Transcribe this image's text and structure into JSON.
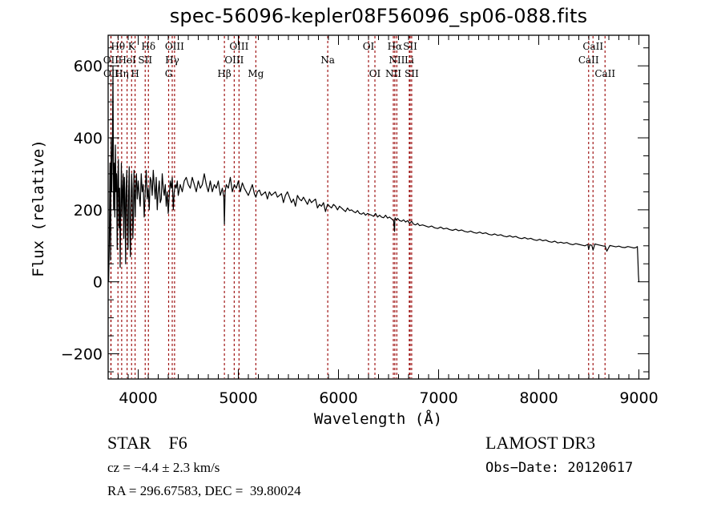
{
  "chart_data": {
    "type": "line",
    "title": "spec-56096-kepler08F56096_sp06-088.fits",
    "xlabel": "Wavelength (Å)",
    "ylabel": "Flux (relative)",
    "xlim": [
      3700,
      9100
    ],
    "ylim": [
      -270,
      685
    ],
    "xticks": [
      4000,
      5000,
      6000,
      7000,
      8000,
      9000
    ],
    "xtick_labels": [
      "4000",
      "5000",
      "6000",
      "7000",
      "8000",
      "9000"
    ],
    "yticks": [
      -200,
      0,
      200,
      400,
      600
    ],
    "ytick_labels": [
      "−200",
      "0",
      "200",
      "400",
      "600"
    ],
    "x_minor_step": 100,
    "y_minor_step": 50,
    "grid": false,
    "series": [
      {
        "name": "spectrum",
        "x": [
          3705,
          3712,
          3718,
          3724,
          3730,
          3736,
          3742,
          3748,
          3754,
          3760,
          3766,
          3772,
          3778,
          3784,
          3790,
          3796,
          3802,
          3808,
          3814,
          3820,
          3826,
          3832,
          3838,
          3844,
          3850,
          3856,
          3862,
          3868,
          3874,
          3880,
          3886,
          3892,
          3898,
          3904,
          3910,
          3916,
          3922,
          3928,
          3934,
          3940,
          3946,
          3952,
          3958,
          3964,
          3970,
          3976,
          3982,
          3990,
          4000,
          4010,
          4020,
          4030,
          4040,
          4050,
          4060,
          4070,
          4080,
          4090,
          4100,
          4110,
          4120,
          4130,
          4140,
          4150,
          4160,
          4170,
          4180,
          4190,
          4200,
          4210,
          4220,
          4230,
          4240,
          4250,
          4260,
          4270,
          4280,
          4290,
          4300,
          4310,
          4320,
          4330,
          4340,
          4350,
          4360,
          4370,
          4380,
          4390,
          4400,
          4420,
          4440,
          4460,
          4480,
          4500,
          4520,
          4540,
          4560,
          4580,
          4600,
          4620,
          4640,
          4660,
          4680,
          4700,
          4720,
          4740,
          4760,
          4780,
          4800,
          4820,
          4840,
          4855,
          4861,
          4868,
          4880,
          4900,
          4920,
          4940,
          4960,
          4980,
          5000,
          5020,
          5040,
          5060,
          5080,
          5100,
          5120,
          5140,
          5160,
          5175,
          5190,
          5210,
          5230,
          5250,
          5270,
          5290,
          5310,
          5330,
          5350,
          5370,
          5390,
          5410,
          5430,
          5450,
          5470,
          5490,
          5510,
          5530,
          5550,
          5570,
          5590,
          5610,
          5630,
          5650,
          5670,
          5690,
          5710,
          5730,
          5750,
          5770,
          5790,
          5810,
          5830,
          5850,
          5870,
          5890,
          5895,
          5910,
          5930,
          5950,
          5970,
          5990,
          6010,
          6030,
          6050,
          6070,
          6090,
          6110,
          6130,
          6150,
          6170,
          6190,
          6210,
          6230,
          6250,
          6270,
          6290,
          6310,
          6330,
          6350,
          6370,
          6390,
          6410,
          6430,
          6450,
          6470,
          6490,
          6510,
          6530,
          6550,
          6560,
          6563,
          6566,
          6575,
          6590,
          6610,
          6630,
          6650,
          6670,
          6690,
          6710,
          6730,
          6750,
          6770,
          6790,
          6810,
          6840,
          6870,
          6900,
          6930,
          6960,
          6990,
          7020,
          7050,
          7080,
          7110,
          7140,
          7170,
          7200,
          7230,
          7260,
          7290,
          7320,
          7350,
          7380,
          7410,
          7440,
          7470,
          7500,
          7530,
          7560,
          7590,
          7620,
          7650,
          7680,
          7710,
          7740,
          7770,
          7800,
          7830,
          7860,
          7890,
          7920,
          7950,
          7980,
          8010,
          8040,
          8070,
          8100,
          8130,
          8160,
          8190,
          8220,
          8250,
          8280,
          8310,
          8340,
          8370,
          8400,
          8430,
          8460,
          8490,
          8498,
          8510,
          8530,
          8542,
          8560,
          8590,
          8620,
          8650,
          8662,
          8680,
          8710,
          8740,
          8770,
          8800,
          8830,
          8860,
          8890,
          8920,
          8950,
          8970,
          8985,
          8990,
          8995,
          9000
        ],
        "y": [
          0,
          120,
          330,
          60,
          400,
          250,
          360,
          600,
          200,
          330,
          180,
          380,
          250,
          300,
          90,
          280,
          340,
          150,
          260,
          40,
          210,
          330,
          180,
          250,
          300,
          120,
          290,
          230,
          50,
          260,
          310,
          170,
          90,
          240,
          320,
          150,
          70,
          210,
          300,
          260,
          120,
          170,
          310,
          240,
          180,
          270,
          300,
          230,
          280,
          240,
          210,
          300,
          250,
          270,
          180,
          250,
          310,
          230,
          260,
          200,
          290,
          280,
          240,
          310,
          270,
          230,
          290,
          200,
          250,
          280,
          220,
          230,
          300,
          260,
          240,
          270,
          210,
          250,
          190,
          240,
          280,
          260,
          290,
          200,
          250,
          270,
          260,
          280,
          240,
          270,
          250,
          280,
          290,
          270,
          260,
          290,
          270,
          250,
          280,
          260,
          270,
          300,
          270,
          250,
          280,
          250,
          270,
          260,
          280,
          240,
          260,
          235,
          160,
          250,
          270,
          260,
          290,
          250,
          270,
          260,
          280,
          250,
          275,
          260,
          250,
          240,
          255,
          270,
          245,
          235,
          250,
          255,
          240,
          245,
          250,
          230,
          250,
          240,
          245,
          250,
          235,
          240,
          245,
          220,
          240,
          250,
          235,
          220,
          230,
          210,
          240,
          230,
          225,
          235,
          225,
          215,
          230,
          220,
          225,
          230,
          205,
          215,
          210,
          220,
          195,
          215,
          215,
          210,
          205,
          215,
          210,
          200,
          210,
          205,
          200,
          195,
          205,
          198,
          200,
          195,
          192,
          198,
          190,
          188,
          192,
          185,
          190,
          187,
          185,
          182,
          190,
          180,
          185,
          180,
          178,
          185,
          177,
          180,
          175,
          170,
          140,
          175,
          178,
          172,
          176,
          170,
          168,
          172,
          166,
          170,
          162,
          168,
          160,
          158,
          162,
          156,
          158,
          155,
          152,
          155,
          150,
          148,
          152,
          147,
          149,
          145,
          143,
          146,
          142,
          144,
          140,
          138,
          141,
          137,
          135,
          138,
          134,
          136,
          132,
          130,
          133,
          129,
          131,
          127,
          125,
          128,
          124,
          126,
          122,
          120,
          123,
          119,
          121,
          117,
          115,
          118,
          114,
          116,
          112,
          110,
          113,
          108,
          110,
          107,
          109,
          105,
          103,
          106,
          104,
          102,
          100,
          104,
          90,
          103,
          101,
          88,
          105,
          103,
          101,
          99,
          100,
          85,
          101,
          99,
          97,
          99,
          96,
          95,
          98,
          96,
          94,
          95,
          98,
          60,
          20,
          0
        ]
      }
    ],
    "lines": [
      {
        "label": "OII",
        "wavelength": 3727,
        "row": 2
      },
      {
        "label": "OII",
        "wavelength": 3729,
        "row": 3
      },
      {
        "label": "Hθ",
        "wavelength": 3798,
        "row": 1
      },
      {
        "label": "Hη",
        "wavelength": 3835,
        "row": 3
      },
      {
        "label": "HeI",
        "wavelength": 3889,
        "row": 2
      },
      {
        "label": "K",
        "wavelength": 3934,
        "row": 1
      },
      {
        "label": "H",
        "wavelength": 3969,
        "row": 3
      },
      {
        "label": "SII",
        "wavelength": 4070,
        "row": 2
      },
      {
        "label": "Hδ",
        "wavelength": 4102,
        "row": 1
      },
      {
        "label": "G",
        "wavelength": 4304,
        "row": 3
      },
      {
        "label": "Hγ",
        "wavelength": 4340,
        "row": 2
      },
      {
        "label": "OIII",
        "wavelength": 4363,
        "row": 1
      },
      {
        "label": "Hβ",
        "wavelength": 4861,
        "row": 3
      },
      {
        "label": "OIII",
        "wavelength": 4959,
        "row": 2
      },
      {
        "label": "OIII",
        "wavelength": 5007,
        "row": 1
      },
      {
        "label": "Mg",
        "wavelength": 5175,
        "row": 3
      },
      {
        "label": "Na",
        "wavelength": 5893,
        "row": 2
      },
      {
        "label": "OI",
        "wavelength": 6300,
        "row": 1
      },
      {
        "label": "OI",
        "wavelength": 6364,
        "row": 3
      },
      {
        "label": "NII",
        "wavelength": 6548,
        "row": 3
      },
      {
        "label": "Hα",
        "wavelength": 6563,
        "row": 1
      },
      {
        "label": "NII",
        "wavelength": 6583,
        "row": 2
      },
      {
        "label": "Li",
        "wavelength": 6707,
        "row": 2
      },
      {
        "label": "SII",
        "wavelength": 6716,
        "row": 1
      },
      {
        "label": "SII",
        "wavelength": 6731,
        "row": 3
      },
      {
        "label": "CaII",
        "wavelength": 8498,
        "row": 2
      },
      {
        "label": "CaII",
        "wavelength": 8542,
        "row": 1
      },
      {
        "label": "CaII",
        "wavelength": 8662,
        "row": 3
      }
    ],
    "colors": {
      "spectrum": "#000000",
      "lines": "#a01818",
      "axes": "#000000"
    }
  },
  "info": {
    "object": "STAR    F6",
    "cz": "cz = −4.4 ± 2.3 km/s",
    "radec": "RA = 296.67583, DEC =  39.80024",
    "survey": "LAMOST DR3",
    "obs_date": "Obs−Date: 20120617"
  }
}
